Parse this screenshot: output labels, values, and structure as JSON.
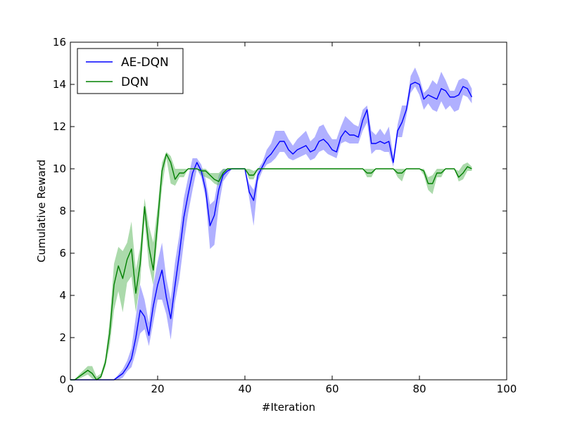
{
  "chart_data": {
    "type": "line",
    "xlabel": "#Iteration",
    "ylabel": "Cumulative Reward",
    "xlim": [
      0,
      100
    ],
    "ylim": [
      0,
      16
    ],
    "xticks": [
      0,
      20,
      40,
      60,
      80,
      100
    ],
    "yticks": [
      0,
      2,
      4,
      6,
      8,
      10,
      12,
      14,
      16
    ],
    "legend_position": "top-left",
    "x": [
      0,
      1,
      2,
      3,
      4,
      5,
      6,
      7,
      8,
      9,
      10,
      11,
      12,
      13,
      14,
      15,
      16,
      17,
      18,
      19,
      20,
      21,
      22,
      23,
      24,
      25,
      26,
      27,
      28,
      29,
      30,
      31,
      32,
      33,
      34,
      35,
      36,
      37,
      38,
      39,
      40,
      41,
      42,
      43,
      44,
      45,
      46,
      47,
      48,
      49,
      50,
      51,
      52,
      53,
      54,
      55,
      56,
      57,
      58,
      59,
      60,
      61,
      62,
      63,
      64,
      65,
      66,
      67,
      68,
      69,
      70,
      71,
      72,
      73,
      74,
      75,
      76,
      77,
      78,
      79,
      80,
      81,
      82,
      83,
      84,
      85,
      86,
      87,
      88,
      89,
      90,
      91,
      92
    ],
    "series": [
      {
        "name": "AE-DQN",
        "color": "#0000ff",
        "fill_color": "#7070ff",
        "values": [
          0,
          0,
          0,
          0,
          0,
          0,
          0,
          0,
          0,
          0,
          0,
          0.15,
          0.3,
          0.6,
          1.0,
          2.0,
          3.3,
          3.0,
          2.1,
          3.5,
          4.5,
          5.2,
          3.9,
          2.9,
          4.5,
          6.0,
          7.7,
          8.8,
          9.8,
          10.3,
          9.9,
          9.0,
          7.3,
          7.8,
          9.0,
          9.7,
          9.9,
          10.0,
          10.0,
          10.0,
          10.0,
          8.9,
          8.5,
          9.7,
          10.1,
          10.5,
          10.7,
          11.0,
          11.3,
          11.3,
          10.9,
          10.7,
          10.9,
          11.0,
          11.1,
          10.8,
          10.9,
          11.3,
          11.4,
          11.2,
          10.9,
          10.8,
          11.5,
          11.8,
          11.6,
          11.6,
          11.5,
          12.3,
          12.8,
          11.2,
          11.2,
          11.3,
          11.2,
          11.3,
          10.3,
          11.8,
          12.2,
          12.8,
          14.0,
          14.1,
          14.0,
          13.3,
          13.5,
          13.4,
          13.3,
          13.8,
          13.7,
          13.4,
          13.4,
          13.5,
          13.9,
          13.8,
          13.4
        ],
        "upper": [
          0,
          0,
          0,
          0,
          0,
          0,
          0,
          0,
          0,
          0,
          0,
          0.25,
          0.5,
          0.9,
          1.5,
          3.0,
          4.5,
          3.8,
          2.7,
          4.5,
          5.6,
          6.5,
          4.8,
          3.8,
          5.6,
          6.9,
          8.6,
          9.6,
          10.5,
          10.5,
          10.2,
          9.5,
          8.3,
          8.5,
          9.7,
          10.0,
          10.0,
          10.0,
          10.0,
          10.0,
          10.0,
          9.3,
          9.0,
          10.0,
          10.3,
          10.9,
          11.2,
          11.8,
          11.8,
          11.8,
          11.4,
          11.1,
          11.4,
          11.6,
          11.8,
          11.3,
          11.5,
          12.0,
          12.1,
          11.7,
          11.4,
          11.4,
          12.0,
          12.5,
          12.3,
          12.1,
          12.0,
          12.8,
          13.0,
          11.8,
          11.6,
          11.9,
          11.6,
          12.0,
          10.6,
          12.1,
          13.0,
          13.0,
          14.4,
          14.8,
          14.3,
          13.6,
          13.8,
          14.2,
          14.0,
          14.6,
          14.2,
          13.7,
          13.7,
          14.2,
          14.3,
          14.2,
          13.8
        ],
        "lower": [
          0,
          0,
          0,
          0,
          0,
          0,
          0,
          0,
          0,
          0,
          0,
          0,
          0.1,
          0.4,
          0.6,
          1.3,
          2.2,
          2.4,
          1.6,
          2.7,
          3.8,
          3.8,
          3.1,
          1.9,
          3.7,
          4.8,
          6.5,
          7.9,
          9.0,
          10.0,
          9.6,
          8.6,
          6.2,
          6.4,
          8.2,
          9.4,
          9.7,
          10.0,
          10.0,
          10.0,
          10.0,
          8.6,
          7.3,
          9.4,
          9.9,
          10.2,
          10.3,
          10.5,
          10.8,
          10.8,
          10.5,
          10.4,
          10.5,
          10.6,
          10.7,
          10.4,
          10.5,
          10.8,
          10.9,
          10.7,
          10.6,
          10.5,
          11.2,
          11.3,
          11.2,
          11.2,
          11.2,
          11.8,
          12.2,
          10.7,
          10.9,
          10.9,
          10.8,
          10.8,
          10.1,
          11.5,
          11.5,
          12.5,
          13.6,
          13.9,
          13.5,
          12.8,
          13.1,
          12.8,
          12.7,
          13.2,
          12.8,
          13.0,
          12.7,
          12.8,
          13.5,
          13.4,
          13.1
        ]
      },
      {
        "name": "DQN",
        "color": "#008000",
        "fill_color": "#66bb66",
        "values": [
          0,
          0,
          0.15,
          0.3,
          0.45,
          0.3,
          0,
          0.15,
          0.8,
          2.2,
          4.5,
          5.4,
          4.8,
          5.7,
          6.2,
          4.1,
          5.5,
          8.2,
          6.3,
          5.2,
          7.5,
          9.9,
          10.7,
          10.3,
          9.5,
          9.8,
          9.8,
          10.0,
          10.0,
          10.0,
          9.9,
          9.9,
          9.7,
          9.5,
          9.4,
          9.8,
          10.0,
          10.0,
          10.0,
          10.0,
          10.0,
          9.7,
          9.7,
          10.0,
          10.0,
          10.0,
          10.0,
          10.0,
          10.0,
          10.0,
          10.0,
          10.0,
          10.0,
          10.0,
          10.0,
          10.0,
          10.0,
          10.0,
          10.0,
          10.0,
          10.0,
          10.0,
          10.0,
          10.0,
          10.0,
          10.0,
          10.0,
          10.0,
          9.8,
          9.8,
          10.0,
          10.0,
          10.0,
          10.0,
          10.0,
          9.8,
          9.8,
          10.0,
          10.0,
          10.0,
          10.0,
          9.9,
          9.3,
          9.3,
          9.8,
          9.8,
          10.0,
          10.0,
          10.0,
          9.6,
          9.8,
          10.1,
          10.0
        ],
        "upper": [
          0,
          0,
          0.25,
          0.45,
          0.65,
          0.65,
          0.15,
          0.3,
          1.0,
          2.8,
          5.5,
          6.3,
          6.1,
          6.5,
          7.5,
          5.2,
          6.3,
          8.6,
          7.3,
          6.5,
          8.2,
          10.3,
          10.8,
          10.6,
          10.0,
          10.0,
          10.0,
          10.0,
          10.0,
          10.0,
          10.0,
          10.0,
          9.8,
          9.8,
          9.8,
          10.0,
          10.0,
          10.0,
          10.0,
          10.0,
          10.0,
          10.0,
          9.9,
          10.0,
          10.0,
          10.0,
          10.0,
          10.0,
          10.0,
          10.0,
          10.0,
          10.0,
          10.0,
          10.0,
          10.0,
          10.0,
          10.0,
          10.0,
          10.0,
          10.0,
          10.0,
          10.0,
          10.0,
          10.0,
          10.0,
          10.0,
          10.0,
          10.0,
          10.0,
          10.0,
          10.0,
          10.0,
          10.0,
          10.0,
          10.0,
          10.0,
          10.0,
          10.0,
          10.0,
          10.0,
          10.0,
          10.0,
          9.6,
          9.7,
          10.0,
          10.0,
          10.0,
          10.0,
          10.0,
          9.9,
          10.2,
          10.3,
          10.1
        ],
        "lower": [
          0,
          0,
          0.05,
          0.15,
          0.25,
          0.05,
          0,
          0.05,
          0.6,
          1.6,
          3.3,
          4.2,
          3.2,
          4.6,
          4.9,
          3.2,
          4.6,
          7.6,
          5.4,
          4.5,
          6.8,
          9.1,
          10.5,
          9.3,
          9.2,
          9.6,
          9.6,
          10.0,
          10.0,
          10.0,
          9.7,
          9.6,
          9.5,
          9.3,
          9.2,
          9.6,
          10.0,
          10.0,
          10.0,
          10.0,
          10.0,
          9.5,
          9.5,
          10.0,
          10.0,
          10.0,
          10.0,
          10.0,
          10.0,
          10.0,
          10.0,
          10.0,
          10.0,
          10.0,
          10.0,
          10.0,
          10.0,
          10.0,
          10.0,
          10.0,
          10.0,
          10.0,
          10.0,
          10.0,
          10.0,
          10.0,
          10.0,
          10.0,
          9.6,
          9.6,
          10.0,
          10.0,
          10.0,
          10.0,
          10.0,
          9.6,
          9.4,
          10.0,
          10.0,
          10.0,
          10.0,
          9.7,
          9.0,
          8.8,
          9.6,
          9.6,
          10.0,
          10.0,
          10.0,
          9.4,
          9.5,
          9.9,
          9.9
        ]
      }
    ]
  }
}
